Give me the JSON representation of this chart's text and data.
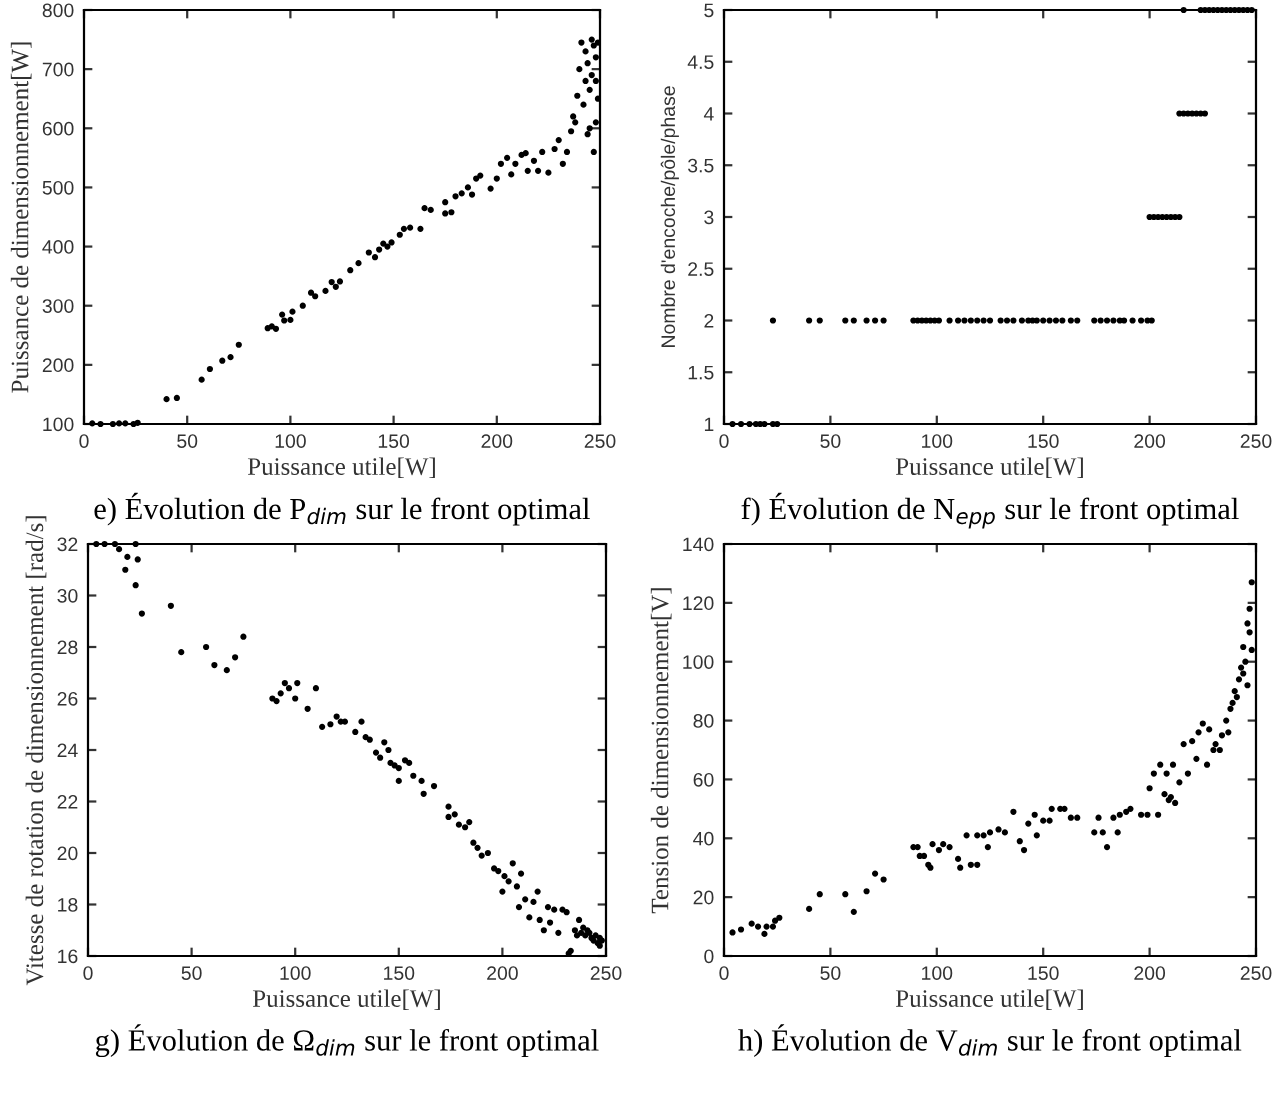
{
  "chart_data": [
    {
      "type": "scatter",
      "title": "e) Évolution de P$_{dim}$ sur le front optimal",
      "xlabel": "Puissance utile[W]",
      "ylabel": "Puissance de dimensionnement[W]",
      "xlim": [
        0,
        250
      ],
      "ylim": [
        100,
        800
      ],
      "xticks": [
        0,
        50,
        100,
        150,
        200,
        250
      ],
      "yticks": [
        100,
        200,
        300,
        400,
        500,
        600,
        700,
        800
      ],
      "marker": "circle",
      "series": [
        {
          "color": "#000000",
          "x": [
            4,
            8,
            14,
            17,
            20,
            24,
            26,
            40,
            45,
            57,
            61,
            67,
            71,
            75,
            89,
            91,
            93,
            96,
            97,
            100,
            101,
            106,
            110,
            112,
            117,
            120,
            122,
            124,
            129,
            133,
            138,
            141,
            143,
            145,
            147,
            149,
            153,
            155,
            158,
            163,
            165,
            168,
            175,
            175,
            178,
            180,
            183,
            186,
            188,
            190,
            192,
            197,
            200,
            202,
            205,
            207,
            209,
            212,
            214,
            215,
            218,
            220,
            222,
            225,
            228,
            230,
            232,
            234,
            236,
            237,
            238,
            239,
            240,
            241,
            242,
            243,
            244,
            245,
            246,
            247,
            248,
            248,
            249,
            244,
            246,
            247,
            249,
            245,
            243,
            248
          ],
          "values": [
            101,
            100,
            100,
            101,
            101,
            100,
            102,
            142,
            144,
            175,
            193,
            207,
            213,
            234,
            262,
            265,
            261,
            285,
            275,
            276,
            290,
            300,
            322,
            316,
            325,
            340,
            332,
            341,
            360,
            372,
            390,
            382,
            395,
            405,
            400,
            407,
            420,
            430,
            432,
            430,
            465,
            462,
            475,
            456,
            458,
            485,
            490,
            500,
            488,
            515,
            520,
            498,
            515,
            540,
            550,
            522,
            540,
            555,
            558,
            528,
            545,
            528,
            560,
            525,
            565,
            580,
            540,
            560,
            595,
            620,
            610,
            655,
            700,
            745,
            640,
            680,
            590,
            665,
            750,
            560,
            720,
            610,
            745,
            710,
            690,
            740,
            650,
            600,
            730,
            680
          ]
        }
      ]
    },
    {
      "type": "scatter",
      "title": "f) Évolution de N$_{epp}$ sur le front optimal",
      "xlabel": "Puissance utile[W]",
      "ylabel": "Nombre d'encoche/pôle/phase",
      "xlim": [
        0,
        250
      ],
      "ylim": [
        1,
        5
      ],
      "xticks": [
        0,
        50,
        100,
        150,
        200,
        250
      ],
      "yticks": [
        1,
        1.5,
        2,
        2.5,
        3,
        3.5,
        4,
        4.5,
        5
      ],
      "marker": "circle",
      "series": [
        {
          "color": "#000000",
          "x": [
            4,
            8,
            12,
            15,
            17,
            19,
            23,
            25,
            23,
            40,
            45,
            57,
            61,
            67,
            71,
            75,
            89,
            91,
            93,
            95,
            97,
            99,
            101,
            106,
            110,
            113,
            116,
            119,
            122,
            125,
            130,
            133,
            136,
            140,
            143,
            145,
            147,
            150,
            153,
            156,
            159,
            163,
            166,
            174,
            177,
            180,
            183,
            186,
            188,
            192,
            196,
            199,
            201,
            200,
            202,
            204,
            206,
            208,
            210,
            212,
            214,
            214,
            216,
            218,
            220,
            222,
            224,
            226,
            216,
            224,
            226,
            228,
            230,
            232,
            234,
            236,
            238,
            240,
            242,
            244,
            246,
            248
          ],
          "values": [
            1,
            1,
            1,
            1,
            1,
            1,
            1,
            1,
            2,
            2,
            2,
            2,
            2,
            2,
            2,
            2,
            2,
            2,
            2,
            2,
            2,
            2,
            2,
            2,
            2,
            2,
            2,
            2,
            2,
            2,
            2,
            2,
            2,
            2,
            2,
            2,
            2,
            2,
            2,
            2,
            2,
            2,
            2,
            2,
            2,
            2,
            2,
            2,
            2,
            2,
            2,
            2,
            2,
            3,
            3,
            3,
            3,
            3,
            3,
            3,
            3,
            4,
            4,
            4,
            4,
            4,
            4,
            4,
            5,
            5,
            5,
            5,
            5,
            5,
            5,
            5,
            5,
            5,
            5,
            5,
            5,
            5
          ]
        }
      ]
    },
    {
      "type": "scatter",
      "title": "g) Évolution de Ω$_{dim}$ sur le front optimal",
      "xlabel": "Puissance utile[W]",
      "ylabel": "Vitesse de rotation de dimensionnement [rad/s]",
      "xlim": [
        0,
        250
      ],
      "ylim": [
        16,
        32
      ],
      "xticks": [
        0,
        50,
        100,
        150,
        200,
        250
      ],
      "yticks": [
        16,
        18,
        20,
        22,
        24,
        26,
        28,
        30,
        32
      ],
      "marker": "circle",
      "series": [
        {
          "color": "#000000",
          "x": [
            4,
            8,
            13,
            15,
            18,
            19,
            23,
            23,
            24,
            26,
            40,
            45,
            57,
            61,
            67,
            71,
            75,
            89,
            91,
            93,
            95,
            97,
            100,
            101,
            106,
            110,
            113,
            117,
            120,
            122,
            124,
            129,
            132,
            134,
            136,
            139,
            141,
            143,
            145,
            146,
            148,
            150,
            150,
            153,
            155,
            157,
            161,
            162,
            167,
            174,
            174,
            177,
            179,
            182,
            184,
            186,
            188,
            190,
            193,
            196,
            198,
            200,
            201,
            203,
            205,
            207,
            208,
            209,
            211,
            213,
            215,
            217,
            218,
            220,
            222,
            223,
            225,
            227,
            229,
            231,
            232,
            233,
            235,
            236,
            237,
            238,
            239,
            240,
            241,
            242,
            243,
            244,
            245,
            246,
            247,
            248,
            247
          ],
          "values": [
            32,
            32,
            32,
            31.8,
            31,
            31.5,
            32,
            30.4,
            31.4,
            29.3,
            29.6,
            27.8,
            28,
            27.3,
            27.1,
            27.6,
            28.4,
            26,
            25.9,
            26.2,
            26.6,
            26.4,
            26,
            26.6,
            25.6,
            26.4,
            24.9,
            25,
            25.3,
            25.1,
            25.1,
            24.7,
            25.1,
            24.5,
            24.4,
            23.9,
            23.7,
            24.3,
            24,
            23.5,
            23.4,
            22.8,
            23.3,
            23.6,
            23.5,
            23,
            22.8,
            22.3,
            22.6,
            21.8,
            21.4,
            21.5,
            21.1,
            21,
            21.2,
            20.4,
            20.2,
            19.9,
            20,
            19.4,
            19.3,
            18.5,
            19.1,
            18.9,
            19.6,
            18.7,
            17.9,
            19.2,
            18.2,
            17.5,
            18.1,
            18.5,
            17.4,
            17,
            17.9,
            17.3,
            17.8,
            16.9,
            17.8,
            17.7,
            16.1,
            16.2,
            17,
            16.8,
            17.4,
            16.9,
            17.1,
            16.8,
            17,
            16.9,
            16.7,
            16.6,
            16.8,
            16.5,
            16.7,
            16.6,
            16.4
          ]
        }
      ]
    },
    {
      "type": "scatter",
      "title": "h) Évolution de V$_{dim}$ sur le front optimal",
      "xlabel": "Puissance utile[W]",
      "ylabel": "Tension de dimensionnement[V]",
      "xlim": [
        0,
        250
      ],
      "ylim": [
        0,
        140
      ],
      "xticks": [
        0,
        50,
        100,
        150,
        200,
        250
      ],
      "yticks": [
        0,
        20,
        40,
        60,
        80,
        100,
        120,
        140
      ],
      "marker": "circle",
      "series": [
        {
          "color": "#000000",
          "x": [
            4,
            8,
            13,
            16,
            19,
            20,
            23,
            24,
            26,
            40,
            45,
            57,
            61,
            67,
            71,
            75,
            89,
            91,
            92,
            94,
            96,
            97,
            98,
            101,
            103,
            106,
            110,
            111,
            114,
            116,
            119,
            119,
            122,
            124,
            125,
            129,
            132,
            136,
            139,
            141,
            143,
            146,
            147,
            150,
            153,
            154,
            158,
            160,
            163,
            166,
            174,
            176,
            178,
            180,
            183,
            185,
            186,
            189,
            191,
            196,
            199,
            200,
            202,
            204,
            205,
            207,
            208,
            209,
            210,
            211,
            212,
            214,
            216,
            218,
            220,
            222,
            223,
            225,
            227,
            228,
            230,
            231,
            233,
            234,
            236,
            237,
            238,
            239,
            240,
            241,
            242,
            243,
            244,
            245,
            246,
            247,
            247,
            248,
            248,
            246,
            244
          ],
          "values": [
            8,
            9,
            11,
            10,
            7.5,
            10,
            10,
            12,
            13,
            16,
            21,
            21,
            15,
            22,
            28,
            26,
            37,
            37,
            34,
            34,
            31,
            30,
            38,
            36,
            38,
            37,
            33,
            30,
            41,
            31,
            31,
            41,
            41,
            37,
            42,
            43,
            42,
            49,
            39,
            36,
            45,
            48,
            41,
            46,
            46,
            50,
            50,
            50,
            47,
            47,
            42,
            47,
            42,
            37,
            47,
            42,
            48,
            49,
            50,
            48,
            48,
            57,
            62,
            48,
            65,
            55,
            62,
            53,
            54,
            65,
            52,
            59,
            72,
            62,
            73,
            67,
            76,
            79,
            65,
            77,
            70,
            72,
            70,
            75,
            80,
            76,
            84,
            86,
            90,
            88,
            94,
            98,
            105,
            100,
            113,
            110,
            118,
            127,
            104,
            92,
            96
          ]
        }
      ]
    }
  ]
}
